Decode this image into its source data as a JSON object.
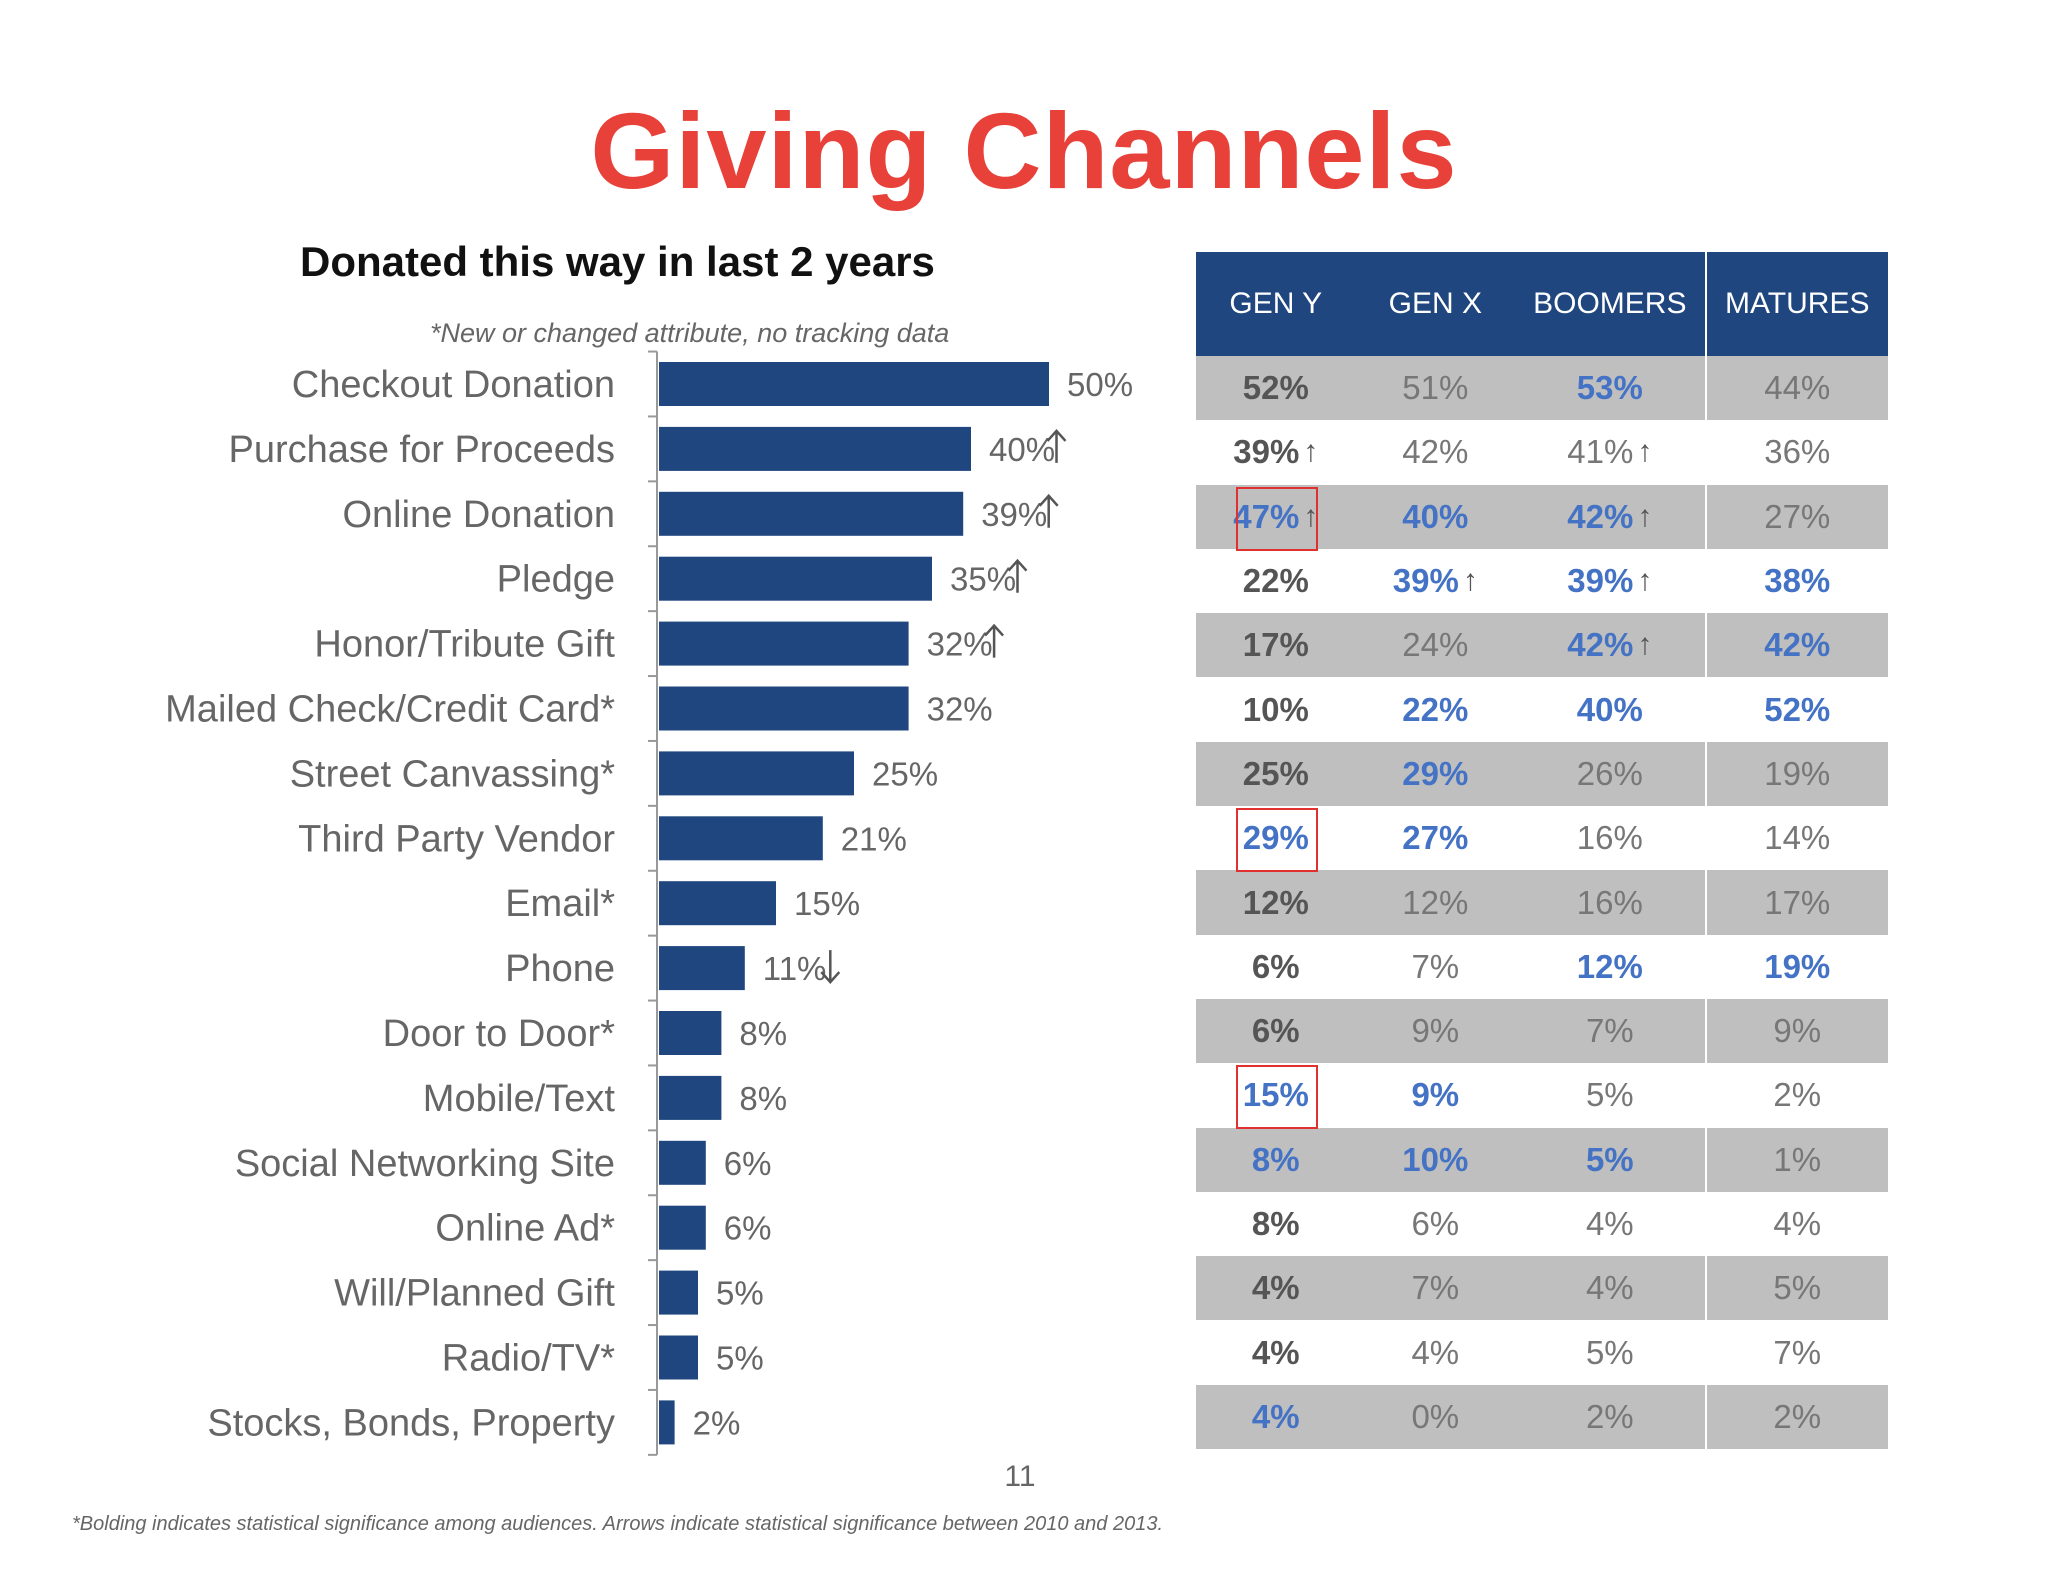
{
  "title": "Giving Channels",
  "subtitle": "Donated this way in last 2 years",
  "note": "*New or changed attribute, no tracking data",
  "page_number": "11",
  "footnote": "*Bolding indicates statistical significance among audiences. Arrows indicate statistical significance between 2010 and 2013.",
  "colors": {
    "title": "#e8413a",
    "bar": "#1f467e",
    "header": "#1f467e",
    "significant": "#4472c4",
    "highlight_box": "#e03030"
  },
  "chart_data": {
    "type": "bar",
    "orientation": "horizontal",
    "title": "Donated this way in last 2 years",
    "categories": [
      "Checkout Donation",
      "Purchase for Proceeds",
      "Online Donation",
      "Pledge",
      "Honor/Tribute Gift",
      "Mailed Check/Credit Card*",
      "Street Canvassing*",
      "Third Party Vendor",
      "Email*",
      "Phone",
      "Door to Door*",
      "Mobile/Text",
      "Social Networking Site",
      "Online Ad*",
      "Will/Planned Gift",
      "Radio/TV*",
      "Stocks, Bonds, Property"
    ],
    "values": [
      50,
      40,
      39,
      35,
      32,
      32,
      25,
      21,
      15,
      11,
      8,
      8,
      6,
      6,
      5,
      5,
      2
    ],
    "labels": [
      "50%",
      "40%",
      "39%",
      "35%",
      "32%",
      "32%",
      "25%",
      "21%",
      "15%",
      "11%",
      "8%",
      "8%",
      "6%",
      "6%",
      "5%",
      "5%",
      "2%"
    ],
    "trend_arrows": [
      "",
      "up",
      "up",
      "up",
      "up",
      "",
      "",
      "",
      "",
      "down",
      "",
      "",
      "",
      "",
      "",
      "",
      ""
    ],
    "grid": false
  },
  "table": {
    "headers": [
      "GEN Y",
      "GEN X",
      "BOOMERS",
      "MATURES"
    ],
    "rows": [
      {
        "cells": [
          {
            "v": "52%"
          },
          {
            "v": "51%"
          },
          {
            "v": "53%",
            "sig": true
          },
          {
            "v": "44%"
          }
        ]
      },
      {
        "cells": [
          {
            "v": "39%",
            "arrow": "up"
          },
          {
            "v": "42%"
          },
          {
            "v": "41%",
            "arrow": "up"
          },
          {
            "v": "36%"
          }
        ]
      },
      {
        "cells": [
          {
            "v": "47%",
            "sig": true,
            "arrow": "up",
            "boxed": true
          },
          {
            "v": "40%",
            "sig": true
          },
          {
            "v": "42%",
            "sig": true,
            "arrow": "up"
          },
          {
            "v": "27%"
          }
        ]
      },
      {
        "cells": [
          {
            "v": "22%"
          },
          {
            "v": "39%",
            "sig": true,
            "arrow": "up"
          },
          {
            "v": "39%",
            "sig": true,
            "arrow": "up"
          },
          {
            "v": "38%",
            "sig": true
          }
        ]
      },
      {
        "cells": [
          {
            "v": "17%"
          },
          {
            "v": "24%"
          },
          {
            "v": "42%",
            "sig": true,
            "arrow": "up"
          },
          {
            "v": "42%",
            "sig": true
          }
        ]
      },
      {
        "cells": [
          {
            "v": "10%"
          },
          {
            "v": "22%",
            "sig": true
          },
          {
            "v": "40%",
            "sig": true
          },
          {
            "v": "52%",
            "sig": true
          }
        ]
      },
      {
        "cells": [
          {
            "v": "25%"
          },
          {
            "v": "29%",
            "sig": true
          },
          {
            "v": "26%"
          },
          {
            "v": "19%"
          }
        ]
      },
      {
        "cells": [
          {
            "v": "29%",
            "sig": true,
            "boxed": true
          },
          {
            "v": "27%",
            "sig": true
          },
          {
            "v": "16%"
          },
          {
            "v": "14%"
          }
        ]
      },
      {
        "cells": [
          {
            "v": "12%"
          },
          {
            "v": "12%"
          },
          {
            "v": "16%"
          },
          {
            "v": "17%"
          }
        ]
      },
      {
        "cells": [
          {
            "v": "6%"
          },
          {
            "v": "7%"
          },
          {
            "v": "12%",
            "sig": true
          },
          {
            "v": "19%",
            "sig": true
          }
        ]
      },
      {
        "cells": [
          {
            "v": "6%"
          },
          {
            "v": "9%"
          },
          {
            "v": "7%"
          },
          {
            "v": "9%"
          }
        ]
      },
      {
        "cells": [
          {
            "v": "15%",
            "sig": true,
            "boxed": true
          },
          {
            "v": "9%",
            "sig": true
          },
          {
            "v": "5%"
          },
          {
            "v": "2%"
          }
        ]
      },
      {
        "cells": [
          {
            "v": "8%",
            "sig": true
          },
          {
            "v": "10%",
            "sig": true
          },
          {
            "v": "5%",
            "sig": true
          },
          {
            "v": "1%"
          }
        ]
      },
      {
        "cells": [
          {
            "v": "8%"
          },
          {
            "v": "6%"
          },
          {
            "v": "4%"
          },
          {
            "v": "4%"
          }
        ]
      },
      {
        "cells": [
          {
            "v": "4%"
          },
          {
            "v": "7%"
          },
          {
            "v": "4%"
          },
          {
            "v": "5%"
          }
        ]
      },
      {
        "cells": [
          {
            "v": "4%"
          },
          {
            "v": "4%"
          },
          {
            "v": "5%"
          },
          {
            "v": "7%"
          }
        ]
      },
      {
        "cells": [
          {
            "v": "4%",
            "sig": true
          },
          {
            "v": "0%"
          },
          {
            "v": "2%"
          },
          {
            "v": "2%"
          }
        ]
      }
    ]
  }
}
